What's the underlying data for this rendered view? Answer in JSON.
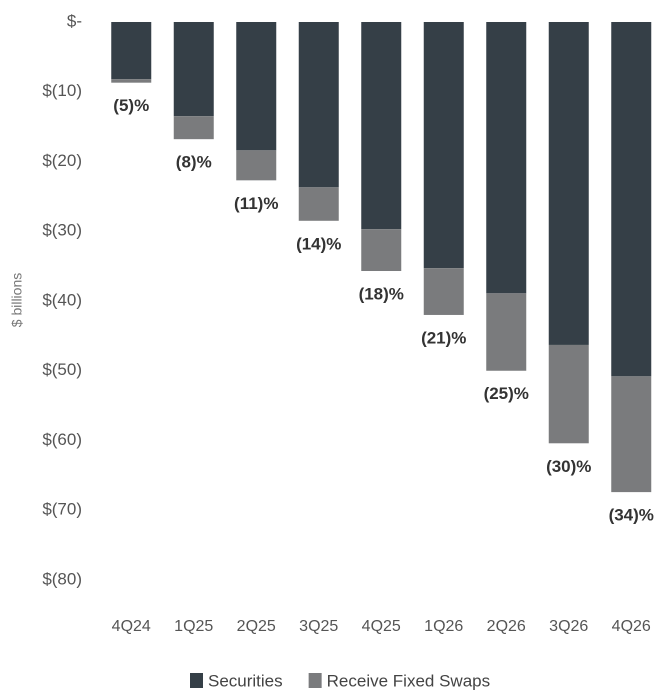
{
  "chart_data": {
    "type": "stacked_bar",
    "y_label": "$ billions",
    "categories": [
      "4Q24",
      "1Q25",
      "2Q25",
      "3Q25",
      "4Q25",
      "1Q26",
      "2Q26",
      "3Q26",
      "4Q26"
    ],
    "series": [
      {
        "name": "Securities",
        "color": "#353f47",
        "values": [
          -8.2,
          -13.5,
          -18.4,
          -23.7,
          -29.7,
          -35.3,
          -38.9,
          -46.3,
          -50.8
        ]
      },
      {
        "name": "Receive Fixed Swaps",
        "color": "#7a7b7d",
        "values": [
          -0.5,
          -3.3,
          -4.3,
          -4.8,
          -6.0,
          -6.7,
          -11.1,
          -14.1,
          -16.6
        ]
      }
    ],
    "annotations": [
      "(5)%",
      "(8)%",
      "(11)%",
      "(14)%",
      "(18)%",
      "(21)%",
      "(25)%",
      "(30)%",
      "(34)%"
    ],
    "ylim": [
      -80,
      0
    ],
    "yticks": [
      {
        "value": 0,
        "label": "$-"
      },
      {
        "value": -10,
        "label": "$(10)"
      },
      {
        "value": -20,
        "label": "$(20)"
      },
      {
        "value": -30,
        "label": "$(30)"
      },
      {
        "value": -40,
        "label": "$(40)"
      },
      {
        "value": -50,
        "label": "$(50)"
      },
      {
        "value": -60,
        "label": "$(60)"
      },
      {
        "value": -70,
        "label": "$(70)"
      },
      {
        "value": -80,
        "label": "$(80)"
      }
    ],
    "legend": "bottom"
  }
}
